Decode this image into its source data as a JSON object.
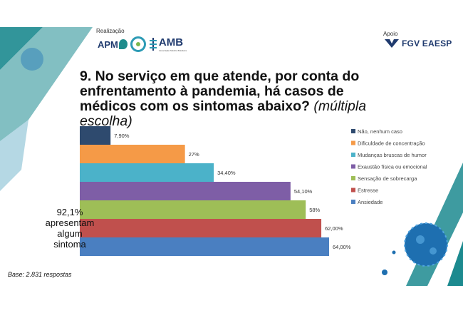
{
  "header": {
    "realizacao_label": "Realização",
    "apm_logo": "APM",
    "amb_logo": "AMB",
    "amb_logo_sub": "Associação Médica Brasileira",
    "apoio_label": "Apoio",
    "fgv_logo": "FGV EAESP"
  },
  "title": {
    "main": "9. No serviço em que atende, por conta do enfrentamento à pandemia, há casos de médicos com os sintomas abaixo?",
    "sub": "(múltipla escolha)"
  },
  "note": {
    "line1": "92,1%",
    "line2": "apresentam",
    "line3": "algum",
    "line4": "sintoma"
  },
  "base": "Base: 2.831 respostas",
  "colors": {
    "teal_deco": "#1c8a8f",
    "virus_blue": "#1e6fb0"
  },
  "chart_data": {
    "type": "bar",
    "orientation": "horizontal",
    "stacked_bands": true,
    "xlim": [
      0,
      64
    ],
    "grid": false,
    "legend_position": "right",
    "series": [
      {
        "name": "Não, nenhum caso",
        "value": 7.9,
        "label": "7,90%",
        "color": "#2e4a6e"
      },
      {
        "name": "Dificuldade de concentração",
        "value": 27,
        "label": "27%",
        "color": "#f59a47"
      },
      {
        "name": "Mudanças bruscas de humor",
        "value": 34.4,
        "label": "34,40%",
        "color": "#4bb2c9"
      },
      {
        "name": "Exaustão física ou emocional",
        "value": 54.1,
        "label": "54,10%",
        "color": "#7e5ea6"
      },
      {
        "name": "Sensação de sobrecarga",
        "value": 58,
        "label": "58%",
        "color": "#9ebe57"
      },
      {
        "name": "Estresse",
        "value": 62,
        "label": "62,00%",
        "color": "#c0504d"
      },
      {
        "name": "Ansiedade",
        "value": 64,
        "label": "64,00%",
        "color": "#4a7fc1"
      }
    ]
  }
}
